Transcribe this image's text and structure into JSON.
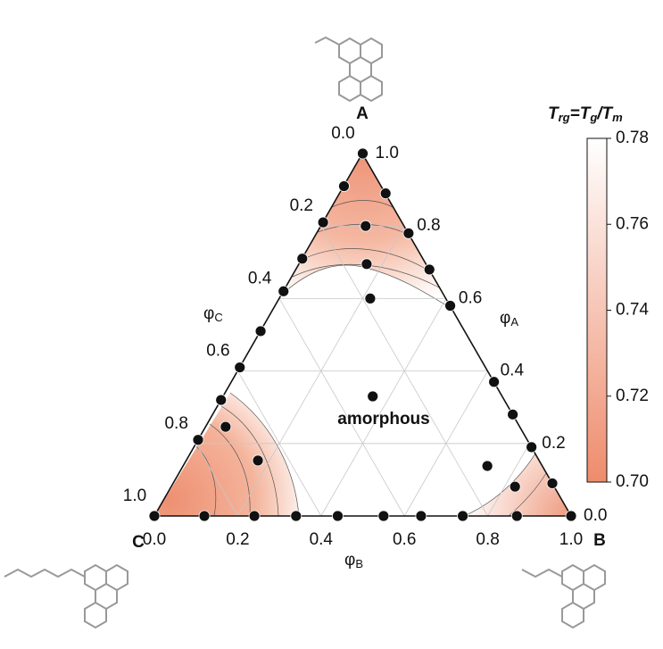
{
  "chart_data": {
    "type": "ternary",
    "vertex_labels": {
      "a": "A",
      "b": "B",
      "c": "C"
    },
    "axis_labels": {
      "a": [
        "φ",
        "A"
      ],
      "b": [
        "φ",
        "B"
      ],
      "c": [
        "φ",
        "C"
      ]
    },
    "ticks": [
      {
        "value": 0,
        "label": "0.0"
      },
      0.2,
      0.4,
      0.6,
      0.8,
      {
        "value": 1,
        "label": "1.0"
      }
    ],
    "annotation": "amorphous",
    "points": {
      "phi_A": [
        0,
        0,
        0,
        0,
        0,
        0,
        0,
        0,
        0,
        0,
        0.21,
        0.32,
        0.41,
        0.51,
        0.62,
        0.71,
        0.81,
        0.91,
        1,
        0.89,
        0.78,
        0.68,
        0.58,
        0.37,
        0.28,
        0.19,
        0.09,
        0.8,
        0.695,
        0.6,
        0.33,
        0.246,
        0.153,
        0.138,
        0.081
      ],
      "phi_B": [
        0,
        0.12,
        0.24,
        0.34,
        0.44,
        0.55,
        0.64,
        0.74,
        0.87,
        1,
        0,
        0,
        0,
        0,
        0,
        0,
        0,
        0,
        0,
        0.11,
        0.22,
        0.32,
        0.42,
        0.63,
        0.72,
        0.81,
        0.91,
        0.107,
        0.162,
        0.218,
        0.359,
        0.048,
        0.172,
        0.73,
        0.825
      ]
    },
    "colorbar": {
      "title": [
        "T",
        "rg",
        "=T",
        "g",
        "/T",
        "m"
      ],
      "lim": [
        0.7,
        0.78
      ],
      "ticks": [
        {
          "value": 0.7,
          "label": "0.70"
        },
        0.72,
        0.74,
        0.76,
        0.78
      ],
      "colors": [
        "#ee8c6c",
        "#ffffff"
      ]
    },
    "point_color": "#111111",
    "grid": true
  }
}
